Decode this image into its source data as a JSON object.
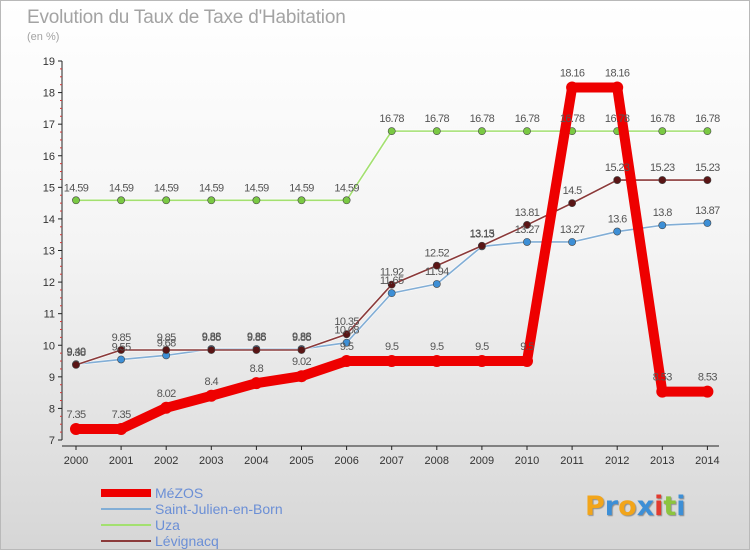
{
  "title": "Evolution du Taux de Taxe d'Habitation",
  "subtitle": "(en %)",
  "logo": {
    "letters": [
      "P",
      "r",
      "o",
      "x",
      "i",
      "t",
      "i"
    ],
    "colors": [
      "#f2a51a",
      "#3d8fd6",
      "#f2a51a",
      "#3d8fd6",
      "#e23b2f",
      "#8cc43f",
      "#3d8fd6"
    ]
  },
  "chart_data": {
    "type": "line",
    "title": "Evolution du Taux de Taxe d'Habitation",
    "ylabel": "(en %)",
    "xlabel": "",
    "x": [
      "2000",
      "2001",
      "2002",
      "2003",
      "2004",
      "2005",
      "2006",
      "2007",
      "2008",
      "2009",
      "2010",
      "2011",
      "2012",
      "2013",
      "2014"
    ],
    "ylim": [
      7,
      19
    ],
    "yticks": [
      "7",
      "8",
      "9",
      "10",
      "11",
      "12",
      "13",
      "14",
      "15",
      "16",
      "17",
      "18",
      "19"
    ],
    "grid": false,
    "legend_position": "bottom-left",
    "series": [
      {
        "name": "MéZOS",
        "color": "#ee0000",
        "marker": "#ee0000",
        "emphasis": true,
        "values": [
          7.35,
          7.35,
          8.02,
          8.4,
          8.8,
          9.02,
          9.5,
          9.5,
          9.5,
          9.5,
          9.5,
          18.16,
          18.16,
          8.53,
          8.53
        ],
        "labels": [
          "7.35",
          "7.35",
          "8.02",
          "8.4",
          "8.8",
          "9.02",
          "9.5",
          "9.5",
          "9.5",
          "9.5",
          "9.5",
          "18.16",
          "18.16",
          "8.53",
          "8.53"
        ]
      },
      {
        "name": "Saint-Julien-en-Born",
        "color": "#82aed6",
        "marker": "#3d8fd6",
        "emphasis": false,
        "values": [
          9.4,
          9.55,
          9.68,
          9.88,
          9.88,
          9.88,
          10.08,
          11.65,
          11.94,
          13.13,
          13.27,
          13.27,
          13.6,
          13.8,
          13.87
        ],
        "labels": [
          "9.40",
          "9.55",
          "9.68",
          "9.88",
          "9.88",
          "9.88",
          "10.08",
          "11.65",
          "11.94",
          "13.13",
          "13.27",
          "13.27",
          "13.6",
          "13.8",
          "13.87"
        ]
      },
      {
        "name": "Uza",
        "color": "#a3e070",
        "marker": "#7ac943",
        "emphasis": false,
        "values": [
          14.59,
          14.59,
          14.59,
          14.59,
          14.59,
          14.59,
          14.59,
          16.78,
          16.78,
          16.78,
          16.78,
          16.78,
          16.78,
          16.78,
          16.78
        ],
        "labels": [
          "14.59",
          "14.59",
          "14.59",
          "14.59",
          "14.59",
          "14.59",
          "14.59",
          "16.78",
          "16.78",
          "16.78",
          "16.78",
          "16.78",
          "16.78",
          "16.78",
          "16.78"
        ]
      },
      {
        "name": "Lévignacq",
        "color": "#8b3a3a",
        "marker": "#5a1515",
        "emphasis": false,
        "values": [
          9.38,
          9.85,
          9.85,
          9.85,
          9.85,
          9.85,
          10.35,
          11.92,
          12.52,
          13.15,
          13.81,
          14.5,
          15.23,
          15.23,
          15.23
        ],
        "labels": [
          "9.38",
          "9.85",
          "9.85",
          "9.85",
          "9.85",
          "9.85",
          "10.35",
          "11.92",
          "12.52",
          "13.15",
          "13.81",
          "14.5",
          "15.23",
          "15.23",
          "15.23"
        ]
      }
    ]
  }
}
